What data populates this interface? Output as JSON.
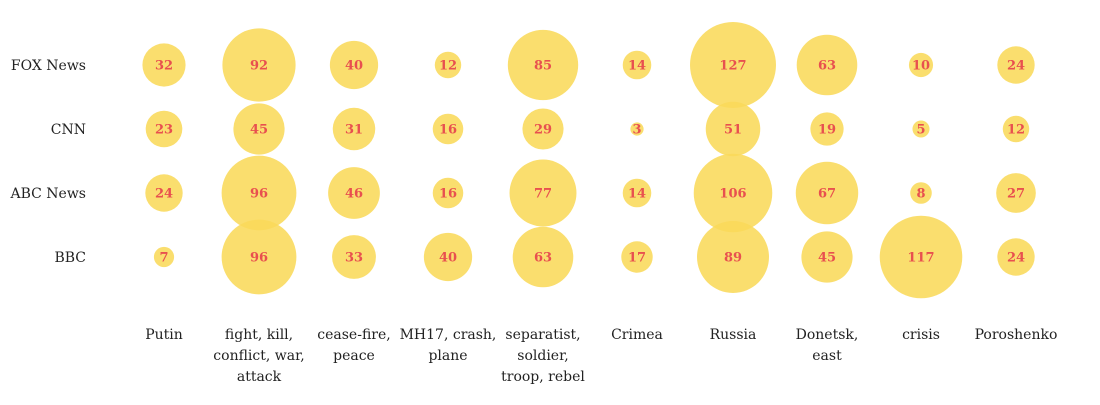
{
  "colors": {
    "bubble": "#f9d95a",
    "value_text": "#e8504f",
    "label_text": "#222222"
  },
  "chart_data": {
    "type": "bubble-matrix",
    "rows": [
      "FOX News",
      "CNN",
      "ABC News",
      "BBC"
    ],
    "columns": [
      [
        "Putin"
      ],
      [
        "fight, kill,",
        "conflict, war,",
        "attack"
      ],
      [
        "cease-fire,",
        "peace"
      ],
      [
        "MH17, crash,",
        "plane"
      ],
      [
        "separatist,",
        "soldier,",
        "troop, rebel"
      ],
      [
        "Crimea"
      ],
      [
        "Russia"
      ],
      [
        "Donetsk,",
        "east"
      ],
      [
        "crisis"
      ],
      [
        "Poroshenko"
      ]
    ],
    "values": [
      [
        32,
        92,
        40,
        12,
        85,
        14,
        127,
        63,
        10,
        24
      ],
      [
        23,
        45,
        31,
        16,
        29,
        3,
        51,
        19,
        5,
        12
      ],
      [
        24,
        96,
        46,
        16,
        77,
        14,
        106,
        67,
        8,
        27
      ],
      [
        7,
        96,
        33,
        40,
        63,
        17,
        89,
        45,
        117,
        24
      ]
    ],
    "max_value": 127,
    "size_encoding": "area"
  }
}
